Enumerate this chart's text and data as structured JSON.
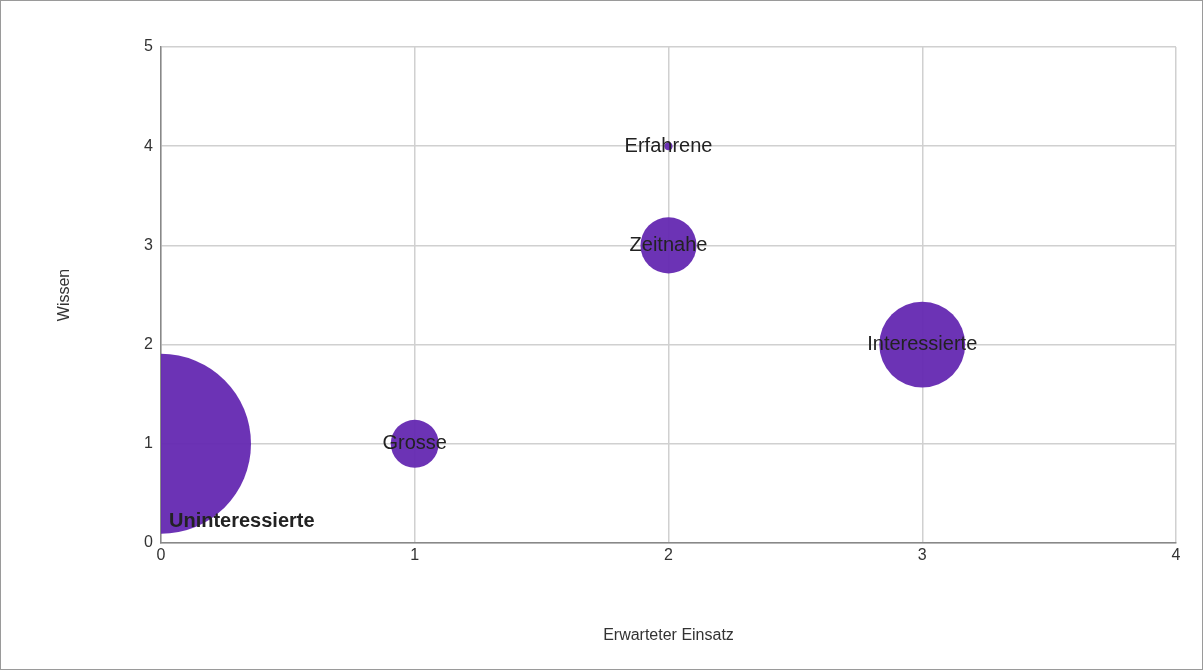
{
  "chart_data": {
    "type": "bubble",
    "xlabel": "Erwarteter Einsatz",
    "ylabel": "Wissen",
    "series": [
      {
        "color": "#6326b0",
        "x": [
          0,
          1,
          2,
          2,
          3
        ],
        "values": [
          1,
          1,
          4,
          3,
          2
        ],
        "sizes": [
          1,
          0.071,
          0.002,
          0.097,
          0.228
        ]
      }
    ],
    "xlim": [
      0,
      4
    ],
    "xticks": [
      0,
      1,
      2,
      3,
      4
    ],
    "ylim": [
      0,
      5
    ],
    "yticks": [
      0,
      1,
      2,
      3,
      4,
      5
    ],
    "grid": true,
    "annotations": [
      "Uninteressierte",
      {
        "text": "Grosse",
        "x": 1,
        "y": 1
      },
      {
        "text": "Erfahrene",
        "x": 2,
        "y": 4
      },
      {
        "text": "Zeitnahe",
        "x": 2,
        "y": 3
      },
      {
        "text": "Interessierte",
        "x": 3,
        "y": 2
      }
    ]
  }
}
